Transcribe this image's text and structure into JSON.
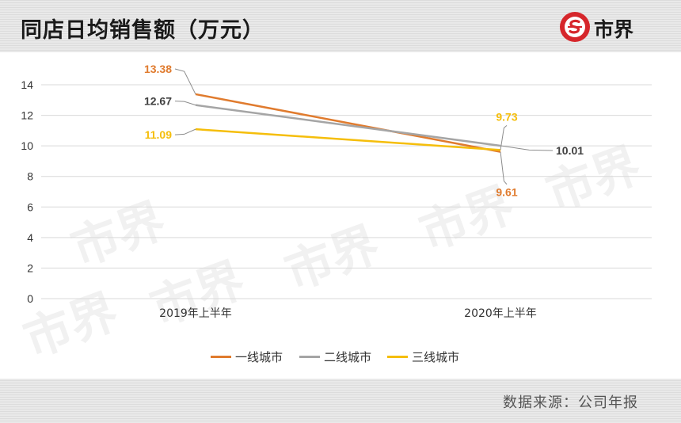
{
  "header": {
    "title": "同店日均销售额（万元）",
    "logo_text": "市界",
    "logo_icon": "shield-s-logo-icon"
  },
  "footer": {
    "source": "数据来源：公司年报"
  },
  "colors": {
    "series1": "#e07b2e",
    "series2": "#a5a5a5",
    "series3": "#f5be0b"
  },
  "chart_data": {
    "type": "line",
    "title": "同店日均销售额（万元）",
    "categories": [
      "2019年上半年",
      "2020年上半年"
    ],
    "series": [
      {
        "name": "一线城市",
        "values": [
          13.38,
          9.61
        ],
        "labels": [
          "13.38",
          "9.61"
        ]
      },
      {
        "name": "二线城市",
        "values": [
          12.67,
          10.01
        ],
        "labels": [
          "12.67",
          "10.01"
        ]
      },
      {
        "name": "三线城市",
        "values": [
          11.09,
          9.73
        ],
        "labels": [
          "11.09",
          "9.73"
        ]
      }
    ],
    "ylim": [
      0,
      14
    ],
    "yticks": [
      "0",
      "2",
      "4",
      "6",
      "8",
      "10",
      "12",
      "14"
    ],
    "grid": true,
    "legend_position": "bottom"
  }
}
